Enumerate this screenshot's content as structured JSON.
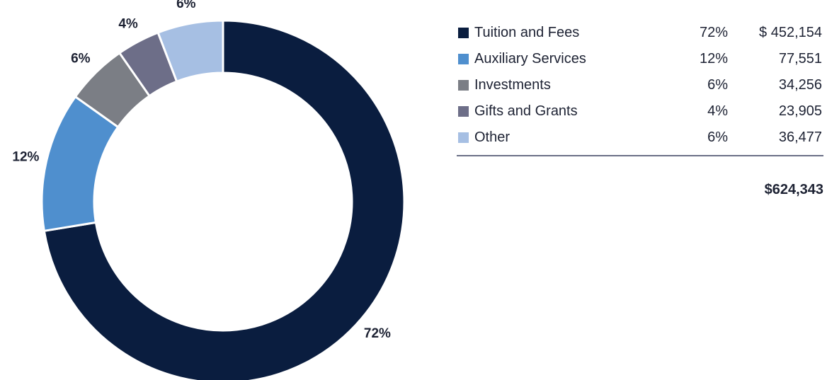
{
  "chart_data": {
    "type": "pie",
    "categories": [
      "Tuition and Fees",
      "Auxiliary Services",
      "Investments",
      "Gifts and Grants",
      "Other"
    ],
    "values": [
      452154,
      77551,
      34256,
      23905,
      36477
    ],
    "percent_labels": [
      "72%",
      "12%",
      "6%",
      "4%",
      "6%"
    ],
    "amount_labels": [
      "$ 452,154",
      "77,551",
      "34,256",
      "23,905",
      "36,477"
    ],
    "colors": [
      "#0a1d3f",
      "#4f8fce",
      "#7b7e85",
      "#6d6e88",
      "#a6bfe3"
    ],
    "total": "$624,343",
    "legend_position": "right"
  }
}
